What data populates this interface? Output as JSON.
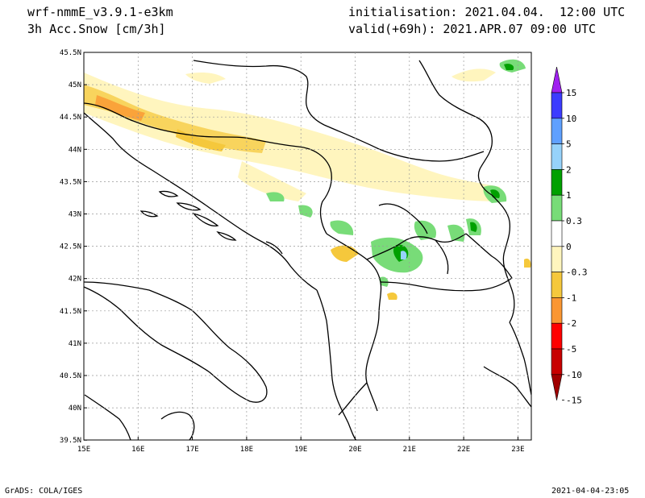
{
  "header": {
    "model": "wrf-nmmE_v3.9.1-e3km",
    "field": "3h Acc.Snow [cm/3h]",
    "init": "initialisation: 2021.04.04.  12:00 UTC",
    "valid": "valid(+69h): 2021.APR.07 09:00 UTC"
  },
  "footer": {
    "left": "GrADS: COLA/IGES",
    "right": "2021-04-04-23:05"
  },
  "map": {
    "lon_ticks": [
      "15E",
      "16E",
      "17E",
      "18E",
      "19E",
      "20E",
      "21E",
      "22E",
      "23E"
    ],
    "lat_ticks": [
      "45.5N",
      "45N",
      "44.5N",
      "44N",
      "43.5N",
      "43N",
      "42.5N",
      "42N",
      "41.5N",
      "41N",
      "40.5N",
      "40N",
      "39.5N"
    ]
  },
  "legend": {
    "labels": [
      "15",
      "10",
      "5",
      "2",
      "1",
      "0.3",
      "0",
      "-0.3",
      "-1",
      "-2",
      "-5",
      "-10",
      "-15"
    ],
    "colors": [
      "#a020f0",
      "#3c3cff",
      "#5fa0ff",
      "#96d2fa",
      "#00a000",
      "#78dc78",
      "#ffffff",
      "#fff5be",
      "#f5c83c",
      "#fa9632",
      "#ff0000",
      "#c80000",
      "#a00000"
    ]
  }
}
